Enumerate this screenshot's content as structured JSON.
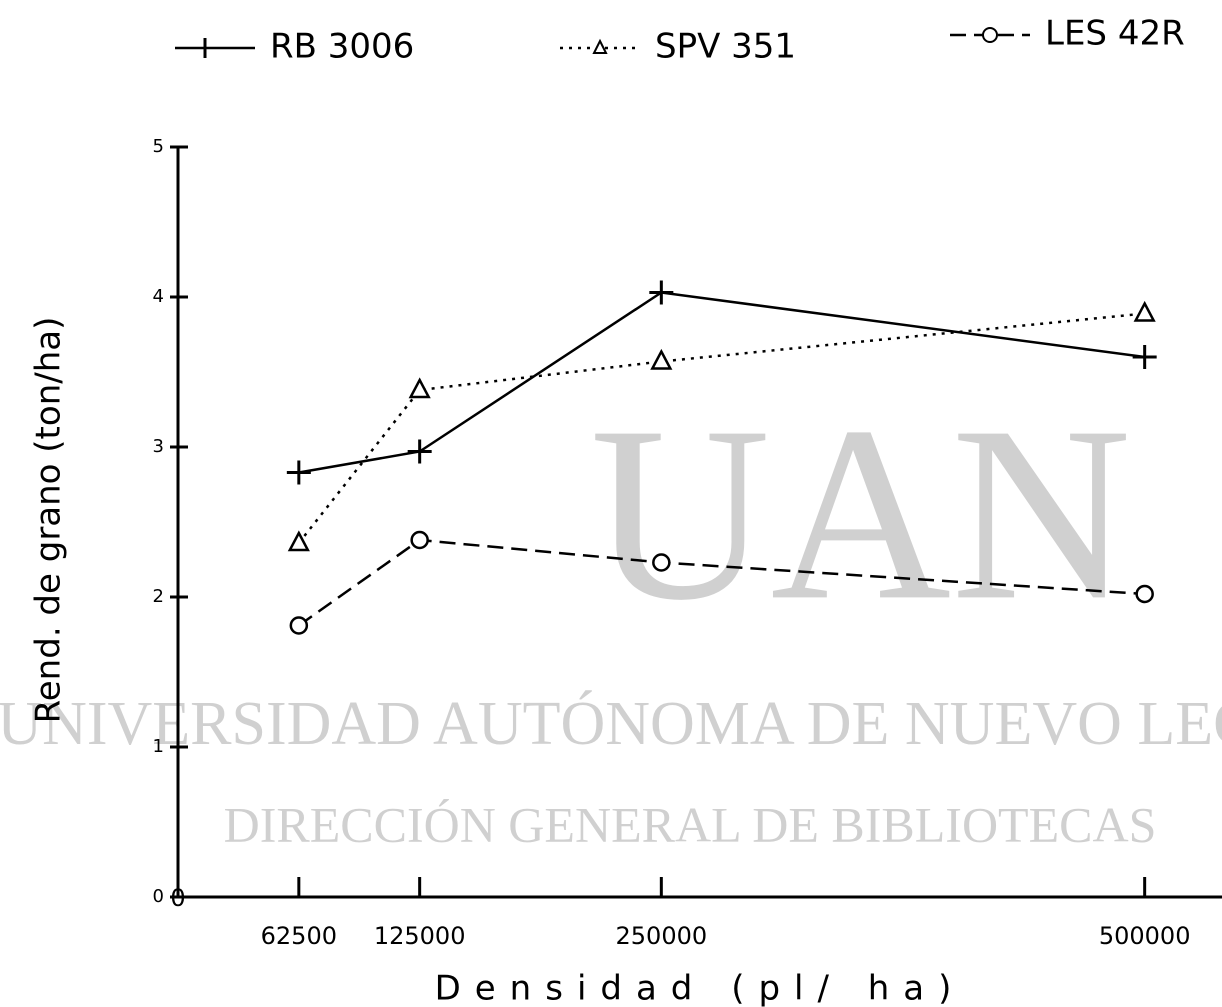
{
  "chart_data": {
    "type": "line",
    "watermark": [
      "UAN",
      "UNIVERSIDAD AUTÓNOMA DE NUEVO LEÓN",
      "DIRECCIÓN GENERAL DE BIBLIOTECAS"
    ],
    "xlabel": "Densidad (pl/ ha)",
    "ylabel": "Rend. de grano (ton/ha)",
    "x": [
      62500,
      125000,
      250000,
      500000
    ],
    "xlim": [
      0,
      540000
    ],
    "xticks": [
      0,
      62500,
      125000,
      250000,
      500000
    ],
    "ylim": [
      0,
      5
    ],
    "yticks": [
      0,
      1,
      2,
      3,
      4,
      5
    ],
    "series": [
      {
        "name": "RB 3006",
        "color": "#000000",
        "line_style": "solid",
        "marker": "plus",
        "values": [
          2.83,
          2.97,
          4.03,
          3.6
        ]
      },
      {
        "name": "SPV 351",
        "color": "#000000",
        "line_style": "dotted",
        "marker": "triangle",
        "values": [
          2.36,
          3.38,
          3.57,
          3.89
        ]
      },
      {
        "name": "LES 42R",
        "color": "#000000",
        "line_style": "dashed",
        "marker": "circle",
        "values": [
          1.81,
          2.38,
          2.23,
          2.02
        ]
      }
    ]
  }
}
